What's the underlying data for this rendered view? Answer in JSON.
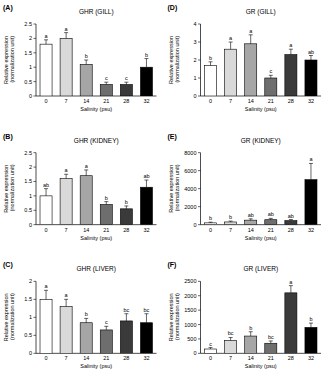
{
  "chart_data": [
    {
      "type": "bar",
      "subtitle": "(A)",
      "title": "GHR (GILL)",
      "x_label": "Salinity (psu)",
      "y_label": "Relative expression (normalization unit)",
      "categories": [
        "0",
        "7",
        "14",
        "21",
        "28",
        "32"
      ],
      "values": [
        1.8,
        2.0,
        1.1,
        0.4,
        0.4,
        1.0
      ],
      "errors": [
        0.15,
        0.2,
        0.15,
        0.08,
        0.08,
        0.3
      ],
      "annotations": [
        "a",
        "a",
        "b",
        "c",
        "c",
        "b"
      ],
      "colors": [
        "#ffffff",
        "#d9d9d9",
        "#a6a6a6",
        "#6e6e6e",
        "#3a3a3a",
        "#000000"
      ],
      "ylim": [
        0,
        2.5
      ],
      "yticks": [
        0,
        0.5,
        1,
        1.5,
        2,
        2.5
      ]
    },
    {
      "type": "bar",
      "subtitle": "(D)",
      "title": "GR (GILL)",
      "x_label": "Salinity (psu)",
      "y_label": "Relative expression (normalization unit)",
      "categories": [
        "0",
        "7",
        "14",
        "21",
        "28",
        "32"
      ],
      "values": [
        1.7,
        2.6,
        2.9,
        1.0,
        2.3,
        2.0
      ],
      "errors": [
        0.2,
        0.4,
        0.5,
        0.15,
        0.3,
        0.25
      ],
      "annotations": [
        "b",
        "a",
        "a",
        "c",
        "a",
        "ab"
      ],
      "colors": [
        "#ffffff",
        "#d9d9d9",
        "#a6a6a6",
        "#6e6e6e",
        "#3a3a3a",
        "#000000"
      ],
      "ylim": [
        0,
        4
      ],
      "yticks": [
        0,
        1,
        2,
        3,
        4
      ]
    },
    {
      "type": "bar",
      "subtitle": "(B)",
      "title": "GHR (KIDNEY)",
      "x_label": "Salinity (psu)",
      "y_label": "Relative expression (normalization unit)",
      "categories": [
        "0",
        "7",
        "14",
        "21",
        "28",
        "32"
      ],
      "values": [
        1.0,
        1.6,
        1.7,
        0.7,
        0.55,
        1.3
      ],
      "errors": [
        0.25,
        0.15,
        0.2,
        0.1,
        0.1,
        0.25
      ],
      "annotations": [
        "ab",
        "a",
        "a",
        "b",
        "b",
        "ab"
      ],
      "colors": [
        "#ffffff",
        "#d9d9d9",
        "#a6a6a6",
        "#6e6e6e",
        "#3a3a3a",
        "#000000"
      ],
      "ylim": [
        0,
        2.5
      ],
      "yticks": [
        0,
        0.5,
        1,
        1.5,
        2,
        2.5
      ]
    },
    {
      "type": "bar",
      "subtitle": "(E)",
      "title": "GR (KIDNEY)",
      "x_label": "Salinity (psu)",
      "y_label": "Relative expression (normalization unit)",
      "categories": [
        "0",
        "7",
        "14",
        "21",
        "28",
        "32"
      ],
      "values": [
        200,
        300,
        500,
        550,
        450,
        5000
      ],
      "errors": [
        80,
        100,
        150,
        150,
        120,
        1800
      ],
      "annotations": [
        "b",
        "b",
        "ab",
        "ab",
        "ab",
        "a"
      ],
      "colors": [
        "#ffffff",
        "#d9d9d9",
        "#a6a6a6",
        "#6e6e6e",
        "#3a3a3a",
        "#000000"
      ],
      "ylim": [
        0,
        8000
      ],
      "yticks": [
        0,
        2000,
        4000,
        6000,
        8000
      ]
    },
    {
      "type": "bar",
      "subtitle": "(C)",
      "title": "GHR (LIVER)",
      "x_label": "Salinity (psu)",
      "y_label": "Relative expression (normalization unit)",
      "categories": [
        "0",
        "7",
        "14",
        "21",
        "28",
        "32"
      ],
      "values": [
        1.5,
        1.3,
        0.85,
        0.65,
        0.9,
        0.85
      ],
      "errors": [
        0.25,
        0.2,
        0.12,
        0.1,
        0.2,
        0.25
      ],
      "annotations": [
        "a",
        "a",
        "b",
        "c",
        "bc",
        "bc"
      ],
      "colors": [
        "#ffffff",
        "#d9d9d9",
        "#a6a6a6",
        "#6e6e6e",
        "#3a3a3a",
        "#000000"
      ],
      "ylim": [
        0,
        2
      ],
      "yticks": [
        0,
        0.5,
        1,
        1.5,
        2
      ]
    },
    {
      "type": "bar",
      "subtitle": "(F)",
      "title": "GR (LIVER)",
      "x_label": "Salinity (psu)",
      "y_label": "Relative expression (normalization unit)",
      "categories": [
        "0",
        "7",
        "14",
        "21",
        "28",
        "32"
      ],
      "values": [
        150,
        450,
        600,
        350,
        2100,
        900
      ],
      "errors": [
        50,
        100,
        150,
        80,
        250,
        150
      ],
      "annotations": [
        "c",
        "bc",
        "b",
        "bc",
        "a",
        "b"
      ],
      "colors": [
        "#ffffff",
        "#d9d9d9",
        "#a6a6a6",
        "#6e6e6e",
        "#3a3a3a",
        "#000000"
      ],
      "ylim": [
        0,
        2500
      ],
      "yticks": [
        0,
        500,
        1000,
        1500,
        2000,
        2500
      ]
    }
  ]
}
